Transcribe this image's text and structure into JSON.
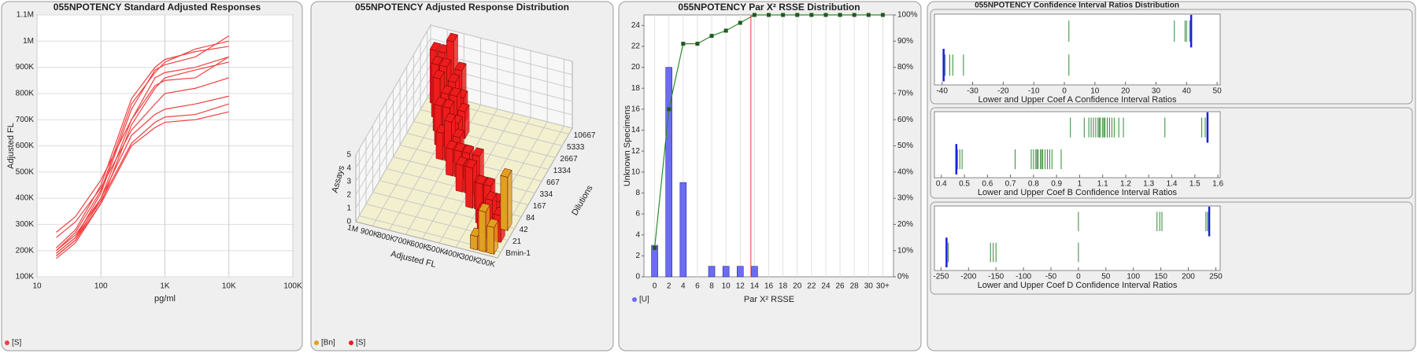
{
  "chart_data": [
    {
      "type": "line",
      "title": "055NPOTENCY Standard Adjusted Responses",
      "xlabel": "pg/ml",
      "ylabel": "Adjusted FL",
      "xscale": "log",
      "grid": true,
      "xlim": [
        10,
        100000
      ],
      "xticks": [
        {
          "value": 10,
          "label": "10"
        },
        {
          "value": 100,
          "label": "100"
        },
        {
          "value": 1000,
          "label": "1K"
        },
        {
          "value": 10000,
          "label": "10K"
        },
        {
          "value": 100000,
          "label": "100K"
        }
      ],
      "ylim": [
        100000,
        1100000
      ],
      "yticks": [
        {
          "value": 100000,
          "label": "100K"
        },
        {
          "value": 200000,
          "label": "200K"
        },
        {
          "value": 300000,
          "label": "300K"
        },
        {
          "value": 400000,
          "label": "400K"
        },
        {
          "value": 500000,
          "label": "500K"
        },
        {
          "value": 600000,
          "label": "600K"
        },
        {
          "value": 700000,
          "label": "700K"
        },
        {
          "value": 800000,
          "label": "800K"
        },
        {
          "value": 900000,
          "label": "900K"
        },
        {
          "value": 1000000,
          "label": "1M"
        },
        {
          "value": 1100000,
          "label": "1.1M"
        }
      ],
      "x": [
        20,
        40,
        100,
        300,
        700,
        1000,
        3000,
        10000
      ],
      "series": [
        {
          "name": "[S]",
          "color": "#f04040",
          "lines": [
            [
              190000,
              250000,
              420000,
              740000,
              890000,
              910000,
              940000,
              1020000
            ],
            [
              200000,
              270000,
              430000,
              760000,
              880000,
              920000,
              970000,
              1000000
            ],
            [
              210000,
              280000,
              450000,
              780000,
              900000,
              930000,
              960000,
              980000
            ],
            [
              180000,
              240000,
              400000,
              700000,
              860000,
              880000,
              900000,
              940000
            ],
            [
              170000,
              230000,
              380000,
              680000,
              820000,
              860000,
              890000,
              920000
            ],
            [
              270000,
              330000,
              470000,
              700000,
              830000,
              850000,
              860000,
              940000
            ],
            [
              250000,
              310000,
              440000,
              660000,
              760000,
              800000,
              820000,
              860000
            ],
            [
              200000,
              260000,
              400000,
              640000,
              720000,
              740000,
              760000,
              790000
            ],
            [
              190000,
              250000,
              390000,
              610000,
              690000,
              710000,
              720000,
              760000
            ],
            [
              180000,
              240000,
              380000,
              600000,
              670000,
              690000,
              700000,
              730000
            ]
          ]
        }
      ]
    },
    {
      "type": "bar3d",
      "title": "055NPOTENCY Adjusted Response Distribution",
      "xlabel": "Adjusted FL",
      "ylabel": "Dilutions",
      "zlabel": "Assays",
      "xlim": [
        1000000,
        150000
      ],
      "xticks": [
        {
          "value": 1000000,
          "label": "1M"
        },
        {
          "value": 900000,
          "label": "900K"
        },
        {
          "value": 800000,
          "label": "800K"
        },
        {
          "value": 700000,
          "label": "700K"
        },
        {
          "value": 600000,
          "label": "600K"
        },
        {
          "value": 500000,
          "label": "500K"
        },
        {
          "value": 400000,
          "label": "400K"
        },
        {
          "value": 300000,
          "label": "300K"
        },
        {
          "value": 200000,
          "label": "200K"
        }
      ],
      "categories": [
        "Bmin-1",
        "21",
        "42",
        "84",
        "167",
        "334",
        "667",
        "1334",
        "2667",
        "5333",
        "10667"
      ],
      "zlim": [
        0,
        5
      ],
      "zticks": [
        0,
        1,
        2,
        3,
        4,
        5
      ],
      "series": [
        {
          "name": "[Bn]",
          "color": "#e0a020",
          "bars": [
            {
              "dilution": "42",
              "fl": 200000,
              "count": 4
            },
            {
              "dilution": "Bmin-1",
              "fl": 300000,
              "count": 1
            },
            {
              "dilution": "Bmin-1",
              "fl": 250000,
              "count": 3
            },
            {
              "dilution": "Bmin-1",
              "fl": 200000,
              "count": 2
            }
          ]
        },
        {
          "name": "[S]",
          "color": "#ee1c1c",
          "bars": [
            {
              "dilution": "10667",
              "fl": 950000,
              "count": 4
            },
            {
              "dilution": "10667",
              "fl": 900000,
              "count": 4
            },
            {
              "dilution": "10667",
              "fl": 850000,
              "count": 5
            },
            {
              "dilution": "10667",
              "fl": 800000,
              "count": 3
            },
            {
              "dilution": "5333",
              "fl": 900000,
              "count": 4
            },
            {
              "dilution": "5333",
              "fl": 850000,
              "count": 4
            },
            {
              "dilution": "5333",
              "fl": 800000,
              "count": 3
            },
            {
              "dilution": "5333",
              "fl": 750000,
              "count": 2
            },
            {
              "dilution": "2667",
              "fl": 850000,
              "count": 4
            },
            {
              "dilution": "2667",
              "fl": 800000,
              "count": 3
            },
            {
              "dilution": "2667",
              "fl": 750000,
              "count": 3
            },
            {
              "dilution": "2667",
              "fl": 700000,
              "count": 2
            },
            {
              "dilution": "1334",
              "fl": 800000,
              "count": 3
            },
            {
              "dilution": "1334",
              "fl": 750000,
              "count": 3
            },
            {
              "dilution": "1334",
              "fl": 700000,
              "count": 2
            },
            {
              "dilution": "667",
              "fl": 750000,
              "count": 2
            },
            {
              "dilution": "667",
              "fl": 700000,
              "count": 3
            },
            {
              "dilution": "667",
              "fl": 650000,
              "count": 2
            },
            {
              "dilution": "667",
              "fl": 600000,
              "count": 1
            },
            {
              "dilution": "334",
              "fl": 650000,
              "count": 2
            },
            {
              "dilution": "334",
              "fl": 600000,
              "count": 2
            },
            {
              "dilution": "334",
              "fl": 550000,
              "count": 2
            },
            {
              "dilution": "167",
              "fl": 550000,
              "count": 2
            },
            {
              "dilution": "167",
              "fl": 500000,
              "count": 2
            },
            {
              "dilution": "167",
              "fl": 450000,
              "count": 3
            },
            {
              "dilution": "84",
              "fl": 450000,
              "count": 3
            },
            {
              "dilution": "84",
              "fl": 400000,
              "count": 2
            },
            {
              "dilution": "84",
              "fl": 350000,
              "count": 2
            },
            {
              "dilution": "42",
              "fl": 350000,
              "count": 3
            },
            {
              "dilution": "42",
              "fl": 300000,
              "count": 3
            },
            {
              "dilution": "42",
              "fl": 250000,
              "count": 2
            },
            {
              "dilution": "21",
              "fl": 300000,
              "count": 2
            },
            {
              "dilution": "21",
              "fl": 250000,
              "count": 3
            },
            {
              "dilution": "21",
              "fl": 200000,
              "count": 2
            }
          ]
        }
      ]
    },
    {
      "type": "bar",
      "title": "055NPOTENCY Par X² RSSE Distribution",
      "xlabel": "Par X² RSSE",
      "ylabel": "Unknown Specimens",
      "grid": "x",
      "xlim": [
        -1.5,
        33.5
      ],
      "xticks": [
        0,
        2,
        4,
        6,
        8,
        10,
        12,
        14,
        16,
        18,
        20,
        22,
        24,
        26,
        28,
        30,
        {
          "value": 32,
          "label": "30+"
        }
      ],
      "ylim": [
        0,
        25
      ],
      "yticks": [
        0,
        2,
        4,
        6,
        8,
        10,
        12,
        14,
        16,
        18,
        20,
        22,
        24
      ],
      "y2lim": [
        0,
        100
      ],
      "y2ticks": [
        {
          "value": 0,
          "label": "0%"
        },
        {
          "value": 10,
          "label": "10%"
        },
        {
          "value": 20,
          "label": "20%"
        },
        {
          "value": 30,
          "label": "30%"
        },
        {
          "value": 40,
          "label": "40%"
        },
        {
          "value": 50,
          "label": "50%"
        },
        {
          "value": 60,
          "label": "60%"
        },
        {
          "value": 70,
          "label": "70%"
        },
        {
          "value": 80,
          "label": "80%"
        },
        {
          "value": 90,
          "label": "90%"
        },
        {
          "value": 100,
          "label": "100%"
        }
      ],
      "x": [
        0,
        2,
        4,
        6,
        8,
        10,
        12,
        14,
        16,
        18,
        20,
        22,
        24,
        26,
        28,
        30,
        32
      ],
      "series": [
        {
          "name": "[U]",
          "color": "#6c6cf0",
          "values": [
            3,
            20,
            9,
            0,
            1,
            1,
            1,
            1,
            0,
            0,
            0,
            0,
            0,
            0,
            0,
            0,
            0
          ]
        },
        {
          "color": "#2e8b2e",
          "axis": "y2",
          "values": [
            11,
            64,
            89,
            89,
            92,
            94,
            97,
            100,
            100,
            100,
            100,
            100,
            100,
            100,
            100,
            100,
            100
          ]
        }
      ],
      "reference_line": {
        "x": 13.5,
        "color": "#e03c3c"
      }
    },
    {
      "type": "strip",
      "title": "055NPOTENCY Confidence Interval Ratios Distribution",
      "color": "#2e8b2e",
      "marker_color": "#1e1ee0",
      "panels": [
        {
          "xlabel": "Lower and Upper Coef A Confidence Interval Ratios",
          "xlim": [
            -42.5,
            51
          ],
          "xticks": [
            -40,
            -30,
            -20,
            -10,
            0,
            10,
            20,
            30,
            40,
            50
          ],
          "upper": {
            "values": [
              1.5,
              36,
              39.5,
              40,
              41
            ],
            "marker": 41.5
          },
          "lower": {
            "values": [
              -39,
              -37.5,
              -36.5,
              -33,
              1.5
            ],
            "marker": -39.5
          }
        },
        {
          "xlabel": "Lower and Upper Coef B Confidence Interval Ratios",
          "xlim": [
            0.37,
            1.61
          ],
          "xticks": [
            0.4,
            0.5,
            0.6,
            0.7,
            0.8,
            0.9,
            1,
            1.1,
            1.2,
            1.3,
            1.4,
            1.5,
            1.6
          ],
          "upper": {
            "values": [
              0.96,
              1.02,
              1.04,
              1.05,
              1.06,
              1.07,
              1.08,
              1.085,
              1.09,
              1.1,
              1.105,
              1.11,
              1.12,
              1.13,
              1.14,
              1.15,
              1.17,
              1.19,
              1.37,
              1.53,
              1.545
            ],
            "marker": 1.555
          },
          "lower": {
            "values": [
              0.47,
              0.48,
              0.49,
              0.72,
              0.79,
              0.8,
              0.81,
              0.815,
              0.82,
              0.83,
              0.835,
              0.84,
              0.85,
              0.86,
              0.87,
              0.88,
              0.92
            ],
            "marker": 0.465
          }
        },
        {
          "xlabel": "Lower and Upper Coef D Confidence Interval Ratios",
          "xlim": [
            -262,
            258
          ],
          "xticks": [
            -250,
            -200,
            -150,
            -100,
            -50,
            0,
            50,
            100,
            150,
            200,
            250
          ],
          "upper": {
            "values": [
              0,
              143,
              148,
              152,
              232,
              235
            ],
            "marker": 238
          },
          "lower": {
            "values": [
              -237,
              -160,
              -155,
              -150,
              0
            ],
            "marker": -240
          }
        }
      ]
    }
  ]
}
